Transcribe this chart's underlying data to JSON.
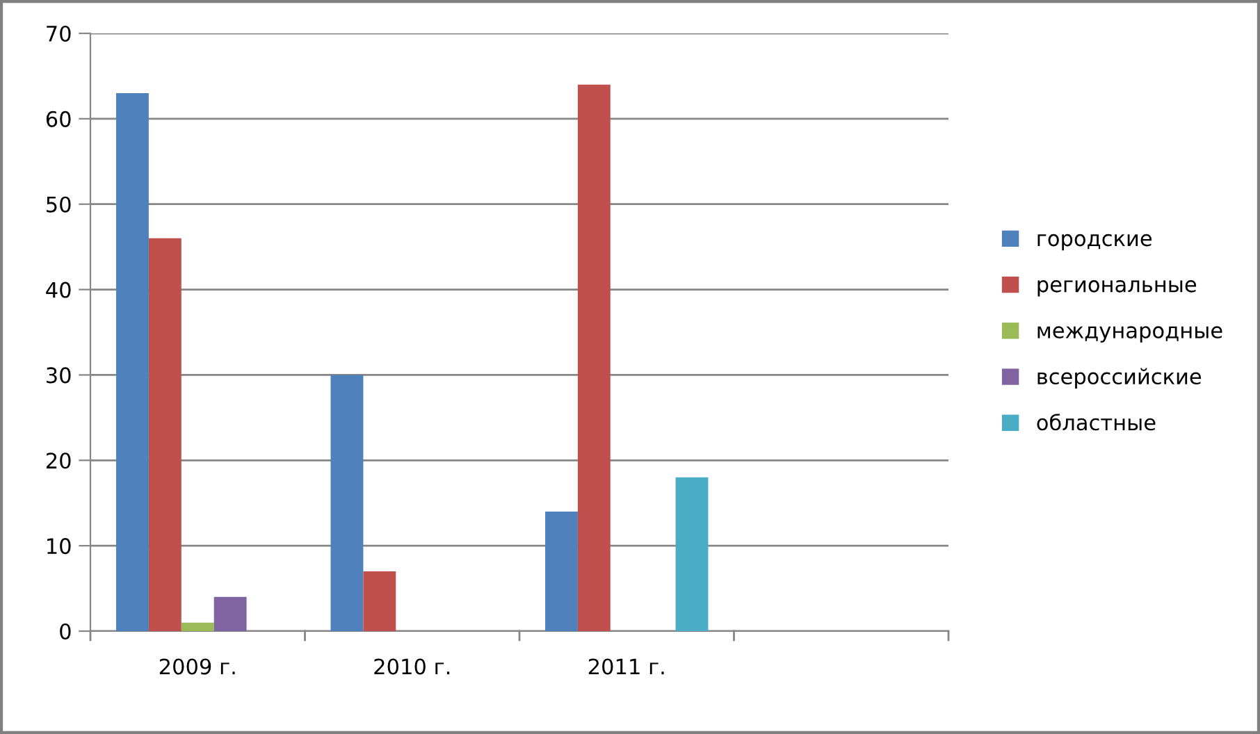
{
  "chart_data": {
    "type": "bar",
    "categories": [
      "2009 г.",
      "2010 г.",
      "2011 г.",
      null
    ],
    "series": [
      {
        "name": "городские",
        "color": "#4f81bd",
        "values": [
          63,
          30,
          14,
          null
        ]
      },
      {
        "name": "региональные",
        "color": "#c0504d",
        "values": [
          46,
          7,
          64,
          null
        ]
      },
      {
        "name": "международные",
        "color": "#9bbb59",
        "values": [
          1,
          null,
          null,
          null
        ]
      },
      {
        "name": "всероссийские",
        "color": "#8064a2",
        "values": [
          4,
          null,
          null,
          null
        ]
      },
      {
        "name": "областные",
        "color": "#4bacc6",
        "values": [
          null,
          null,
          18,
          null
        ]
      }
    ],
    "ylim": [
      0,
      70
    ],
    "yticks": [
      0,
      10,
      20,
      30,
      40,
      50,
      60,
      70
    ],
    "grid": "y",
    "legend": "right"
  }
}
